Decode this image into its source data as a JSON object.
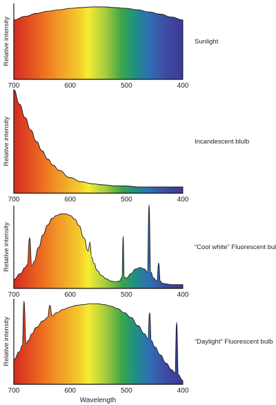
{
  "chart_data": [
    {
      "type": "area",
      "name": "Sunlight",
      "ylabel": "Relative intensity",
      "xlabel": "",
      "xlim": [
        700,
        400
      ],
      "xticks": [
        700,
        600,
        500,
        400
      ],
      "x": [
        700,
        680,
        660,
        640,
        620,
        600,
        580,
        560,
        540,
        520,
        500,
        480,
        460,
        440,
        420,
        400
      ],
      "y": [
        0.82,
        0.87,
        0.91,
        0.94,
        0.96,
        0.98,
        0.99,
        1.0,
        1.0,
        0.99,
        0.98,
        0.96,
        0.93,
        0.9,
        0.86,
        0.82
      ]
    },
    {
      "type": "area",
      "name": "Incandescent blulb",
      "ylabel": "Relative intensity",
      "xlabel": "",
      "xlim": [
        700,
        400
      ],
      "xticks": [
        700,
        600,
        500,
        400
      ],
      "x": [
        700,
        690,
        680,
        670,
        660,
        650,
        640,
        630,
        620,
        600,
        580,
        560,
        540,
        520,
        500,
        480,
        460,
        440,
        420,
        400
      ],
      "y": [
        1.0,
        0.86,
        0.73,
        0.61,
        0.5,
        0.41,
        0.33,
        0.27,
        0.22,
        0.15,
        0.11,
        0.09,
        0.08,
        0.07,
        0.07,
        0.06,
        0.06,
        0.06,
        0.06,
        0.06
      ]
    },
    {
      "type": "area",
      "name": "“Cool white” Fluorescent bulb",
      "ylabel": "Relative intensity",
      "xlabel": "",
      "xlim": [
        700,
        400
      ],
      "xticks": [
        700,
        600,
        500,
        400
      ],
      "x": [
        700,
        688,
        680,
        676,
        672,
        668,
        664,
        656,
        648,
        640,
        632,
        624,
        616,
        608,
        600,
        592,
        584,
        576,
        568,
        565,
        562,
        558,
        552,
        544,
        536,
        528,
        520,
        512,
        508,
        506,
        504,
        500,
        492,
        484,
        476,
        468,
        463,
        460,
        457,
        452,
        446,
        443,
        440,
        437,
        430,
        420,
        410,
        400
      ],
      "y": [
        0.12,
        0.2,
        0.28,
        0.32,
        0.68,
        0.3,
        0.36,
        0.55,
        0.72,
        0.85,
        0.94,
        0.98,
        1.0,
        1.0,
        0.98,
        0.93,
        0.84,
        0.68,
        0.5,
        0.62,
        0.42,
        0.34,
        0.24,
        0.17,
        0.13,
        0.1,
        0.09,
        0.1,
        0.15,
        0.7,
        0.15,
        0.14,
        0.2,
        0.26,
        0.28,
        0.26,
        0.22,
        1.12,
        0.22,
        0.14,
        0.1,
        0.34,
        0.1,
        0.07,
        0.06,
        0.05,
        0.05,
        0.05
      ]
    },
    {
      "type": "area",
      "name": "“Daylight” Fluorescent bulb",
      "ylabel": "Relative intensity",
      "xlabel": "Wavelength",
      "xlim": [
        700,
        400
      ],
      "xticks": [
        700,
        600,
        500,
        400
      ],
      "x": [
        700,
        690,
        685,
        682,
        678,
        674,
        668,
        660,
        648,
        640,
        636,
        632,
        624,
        612,
        600,
        588,
        576,
        564,
        552,
        540,
        528,
        516,
        504,
        492,
        480,
        468,
        462,
        459,
        456,
        450,
        440,
        430,
        420,
        414,
        411,
        408,
        402,
        400
      ],
      "y": [
        0.3,
        0.4,
        0.48,
        1.02,
        0.5,
        0.54,
        0.62,
        0.7,
        0.78,
        0.82,
        0.97,
        0.84,
        0.88,
        0.92,
        0.95,
        0.97,
        0.98,
        0.99,
        0.99,
        0.98,
        0.96,
        0.93,
        0.88,
        0.82,
        0.72,
        0.62,
        0.56,
        0.88,
        0.54,
        0.46,
        0.36,
        0.26,
        0.18,
        0.14,
        0.76,
        0.12,
        0.06,
        0.04
      ]
    }
  ]
}
